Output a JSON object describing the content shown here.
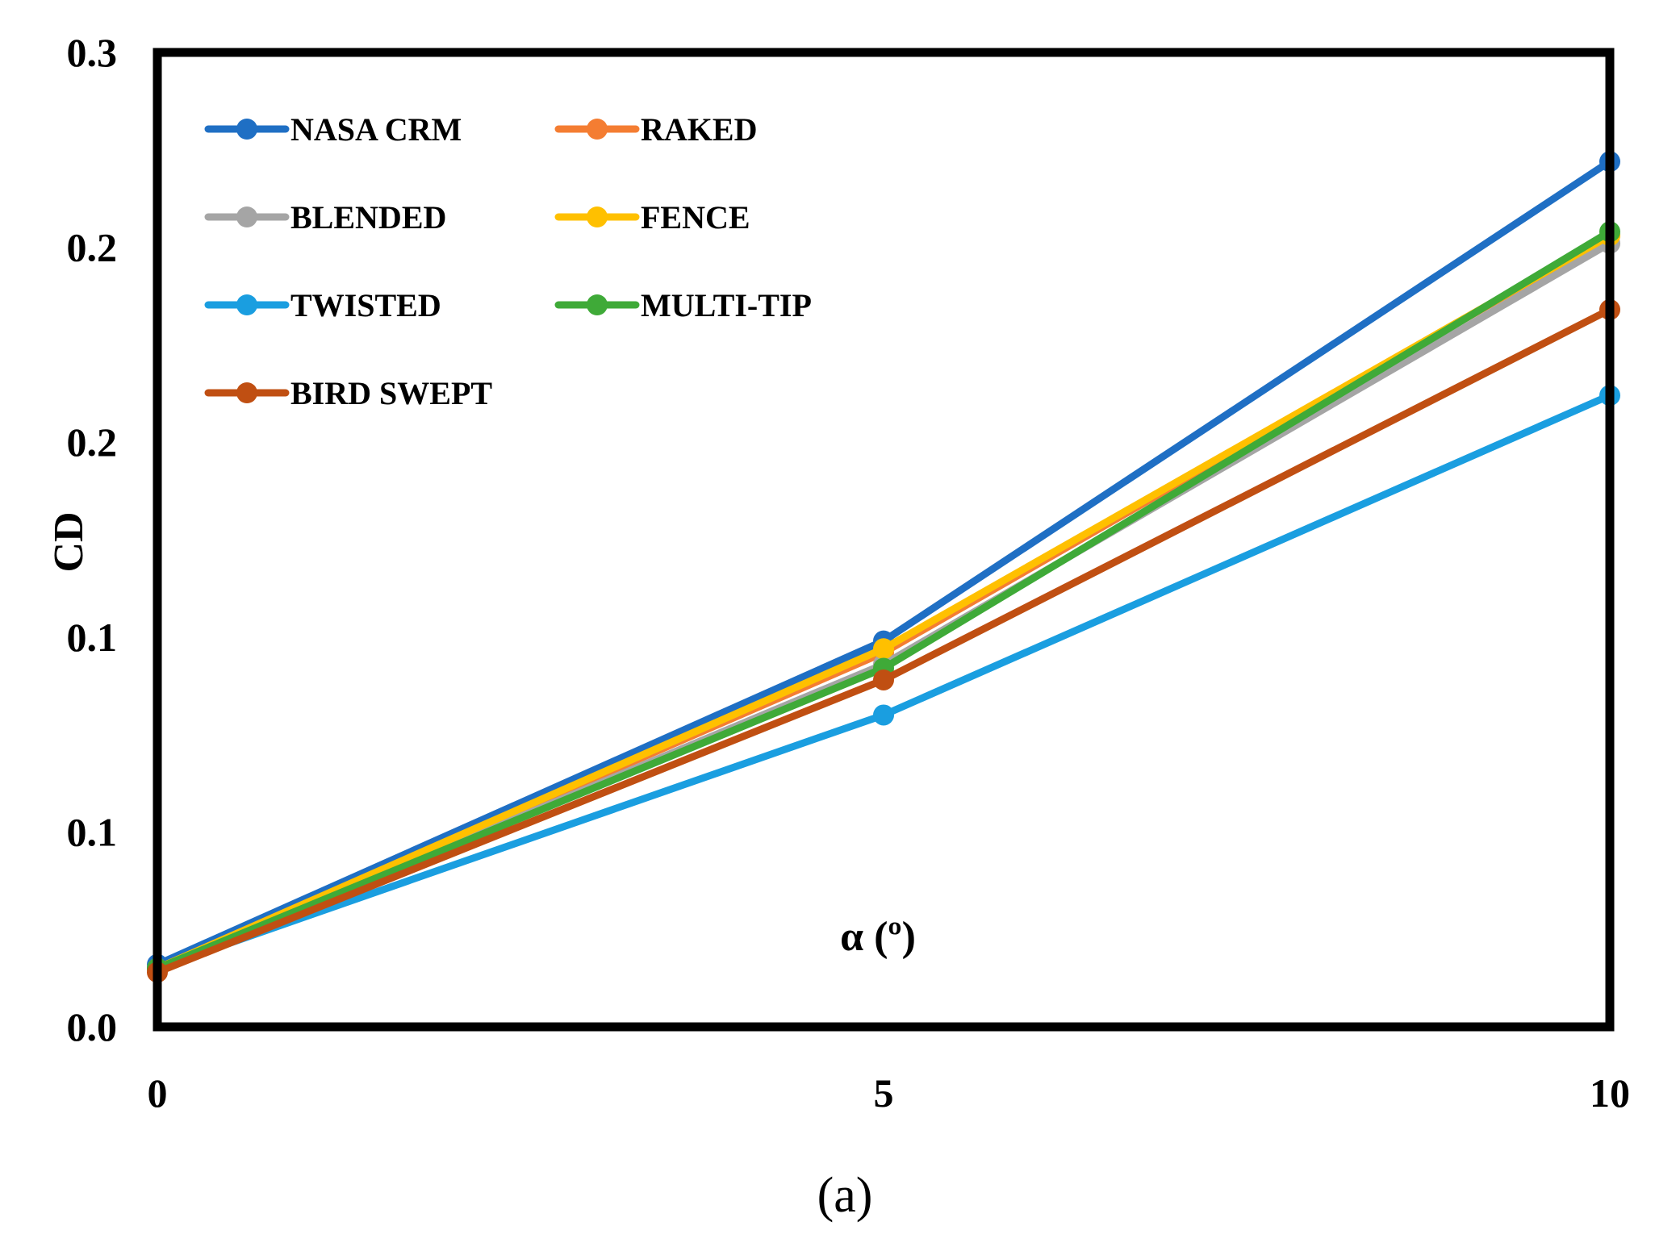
{
  "chart_data": {
    "type": "line",
    "title": "",
    "caption": "(a)",
    "xlabel": "α (º)",
    "ylabel": "CD",
    "x": [
      0,
      5,
      10
    ],
    "xlim": [
      0,
      10
    ],
    "ylim": [
      0,
      0.25
    ],
    "x_ticks": [
      {
        "value": 0,
        "label": "0"
      },
      {
        "value": 5,
        "label": "5"
      },
      {
        "value": 10,
        "label": "10"
      }
    ],
    "y_ticks": [
      {
        "value": 0,
        "label": "0.0"
      },
      {
        "value": 0.05,
        "label": "0.1"
      },
      {
        "value": 0.1,
        "label": "0.1"
      },
      {
        "value": 0.15,
        "label": "0.2"
      },
      {
        "value": 0.2,
        "label": "0.2"
      },
      {
        "value": 0.25,
        "label": "0.3"
      }
    ],
    "grid": false,
    "legend_position": "top-left",
    "series": [
      {
        "name": "NASA CRM",
        "color": "#1f6fc4",
        "values": [
          0.016,
          0.099,
          0.222
        ]
      },
      {
        "name": "RAKED",
        "color": "#f47d32",
        "values": [
          0.015,
          0.096,
          0.203
        ]
      },
      {
        "name": "BLENDED",
        "color": "#a5a5a5",
        "values": [
          0.015,
          0.093,
          0.201
        ]
      },
      {
        "name": "FENCE",
        "color": "#ffc000",
        "values": [
          0.015,
          0.097,
          0.203
        ]
      },
      {
        "name": "TWISTED",
        "color": "#1a9ee0",
        "values": [
          0.015,
          0.08,
          0.162
        ]
      },
      {
        "name": "MULTI-TIP",
        "color": "#3faa38",
        "values": [
          0.015,
          0.092,
          0.204
        ]
      },
      {
        "name": "BIRD SWEPT",
        "color": "#c04f12",
        "values": [
          0.014,
          0.089,
          0.184
        ]
      }
    ]
  }
}
